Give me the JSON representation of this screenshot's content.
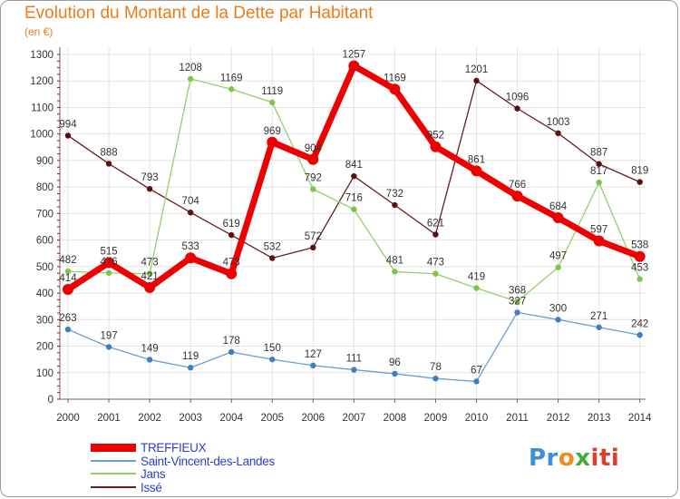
{
  "title": "Evolution du Montant de la Dette par Habitant",
  "unit": "(en €)",
  "logo": {
    "text": "Proxiti",
    "parts": [
      "Pr",
      "o",
      "x",
      "iti"
    ]
  },
  "chart_data": {
    "type": "line",
    "x": [
      "2000",
      "2001",
      "2002",
      "2003",
      "2004",
      "2005",
      "2006",
      "2007",
      "2008",
      "2009",
      "2010",
      "2011",
      "2012",
      "2013",
      "2014"
    ],
    "yticks": [
      0,
      100,
      200,
      300,
      400,
      500,
      600,
      700,
      800,
      900,
      1000,
      1100,
      1200,
      1300
    ],
    "ylim": [
      0,
      1300
    ],
    "grid": true,
    "legend_position": "bottom-left",
    "series": [
      {
        "name": "Issé",
        "color": "#6b1d1d",
        "width": 1.3,
        "values": [
          994,
          888,
          793,
          704,
          619,
          532,
          572,
          841,
          732,
          621,
          1201,
          1096,
          1003,
          887,
          819
        ]
      },
      {
        "name": "Jans",
        "color": "#8fd16a",
        "width": 1.3,
        "values": [
          482,
          476,
          473,
          1208,
          1169,
          1119,
          792,
          716,
          481,
          473,
          419,
          368,
          497,
          817,
          453
        ]
      },
      {
        "name": "Saint-Vincent-des-Landes",
        "color": "#6a9fd2",
        "width": 1.3,
        "values": [
          263,
          197,
          149,
          119,
          178,
          150,
          127,
          111,
          96,
          78,
          67,
          327,
          300,
          271,
          242
        ]
      },
      {
        "name": "TREFFIEUX",
        "color": "#ee0000",
        "width": 7,
        "values": [
          414,
          515,
          421,
          533,
          473,
          969,
          904,
          1257,
          1169,
          952,
          861,
          766,
          684,
          597,
          538
        ]
      }
    ],
    "legend_order": [
      "TREFFIEUX",
      "Saint-Vincent-des-Landes",
      "Jans",
      "Issé"
    ]
  }
}
